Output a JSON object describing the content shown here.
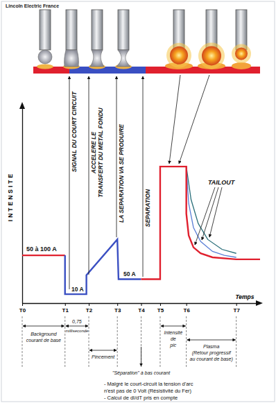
{
  "chart_data": {
    "type": "line",
    "title": "Lincoln Electric France",
    "xlabel": "Temps",
    "ylabel": "INTENSITE",
    "xlim": [
      0,
      100
    ],
    "ylim": [
      0,
      100
    ],
    "xticks": [
      {
        "value": 0,
        "label": "T0"
      },
      {
        "value": 18,
        "label": "T1"
      },
      {
        "value": 28,
        "label": "T2"
      },
      {
        "value": 40,
        "label": "T3"
      },
      {
        "value": 50,
        "label": "T4"
      },
      {
        "value": 58,
        "label": "T5"
      },
      {
        "value": 69,
        "label": "T6"
      },
      {
        "value": 90,
        "label": "T7"
      }
    ],
    "tick_labels": "x",
    "grid": false,
    "series": [
      {
        "color": "#e0202e",
        "x": [
          0,
          18
        ],
        "values": [
          24,
          24
        ]
      },
      {
        "color": "#3a4fc2",
        "x": [
          18,
          18,
          27,
          27,
          40,
          40.5,
          50
        ],
        "values": [
          24,
          4.5,
          4.5,
          14,
          32,
          12,
          12
        ]
      },
      {
        "color": "#2a6f7a",
        "x": [
          69,
          71,
          74,
          78,
          84,
          90
        ],
        "values": [
          68.6,
          52,
          40,
          32,
          27,
          25
        ]
      },
      {
        "color": "#5b7fd6",
        "x": [
          69,
          70,
          72,
          75,
          80,
          85,
          90
        ],
        "values": [
          68.6,
          50,
          38,
          31,
          26,
          24,
          23
        ]
      },
      {
        "color": "#e0202e",
        "x": [
          50,
          58,
          58,
          69,
          69,
          70,
          72,
          75,
          80,
          90,
          100
        ],
        "values": [
          12,
          12,
          68.6,
          68.6,
          45,
          34,
          28,
          25,
          23,
          22,
          22
        ]
      }
    ],
    "annotations": [
      [
        "50 à 100 A"
      ],
      [
        "10 A"
      ],
      [
        "50 A"
      ],
      [
        "SIGNAL DU COURT CIRCUIT"
      ],
      [
        "ACCELERE LE",
        "TRANSFERT DU METAL FONDU"
      ],
      [
        "LA SEPARATION VA SE PRODUIRE"
      ],
      [
        "SEPARATION"
      ],
      [
        "TAILOUT"
      ],
      [
        "Background",
        "courant de base"
      ],
      [
        "0,75",
        "milliseconde"
      ],
      [
        "Pincement"
      ],
      [
        "\"Séparation\" à bas courant"
      ],
      [
        "Intensité",
        "de",
        "pic"
      ],
      [
        "Plasma",
        "(Retour progressif",
        "au courant de base)"
      ],
      [
        "- Malgré le court-circuit la tension d'arc",
        "n'est pas de 0 Volt (Résistivité du Fer)",
        "- Calcul de dI/dT pris en compte"
      ]
    ]
  }
}
